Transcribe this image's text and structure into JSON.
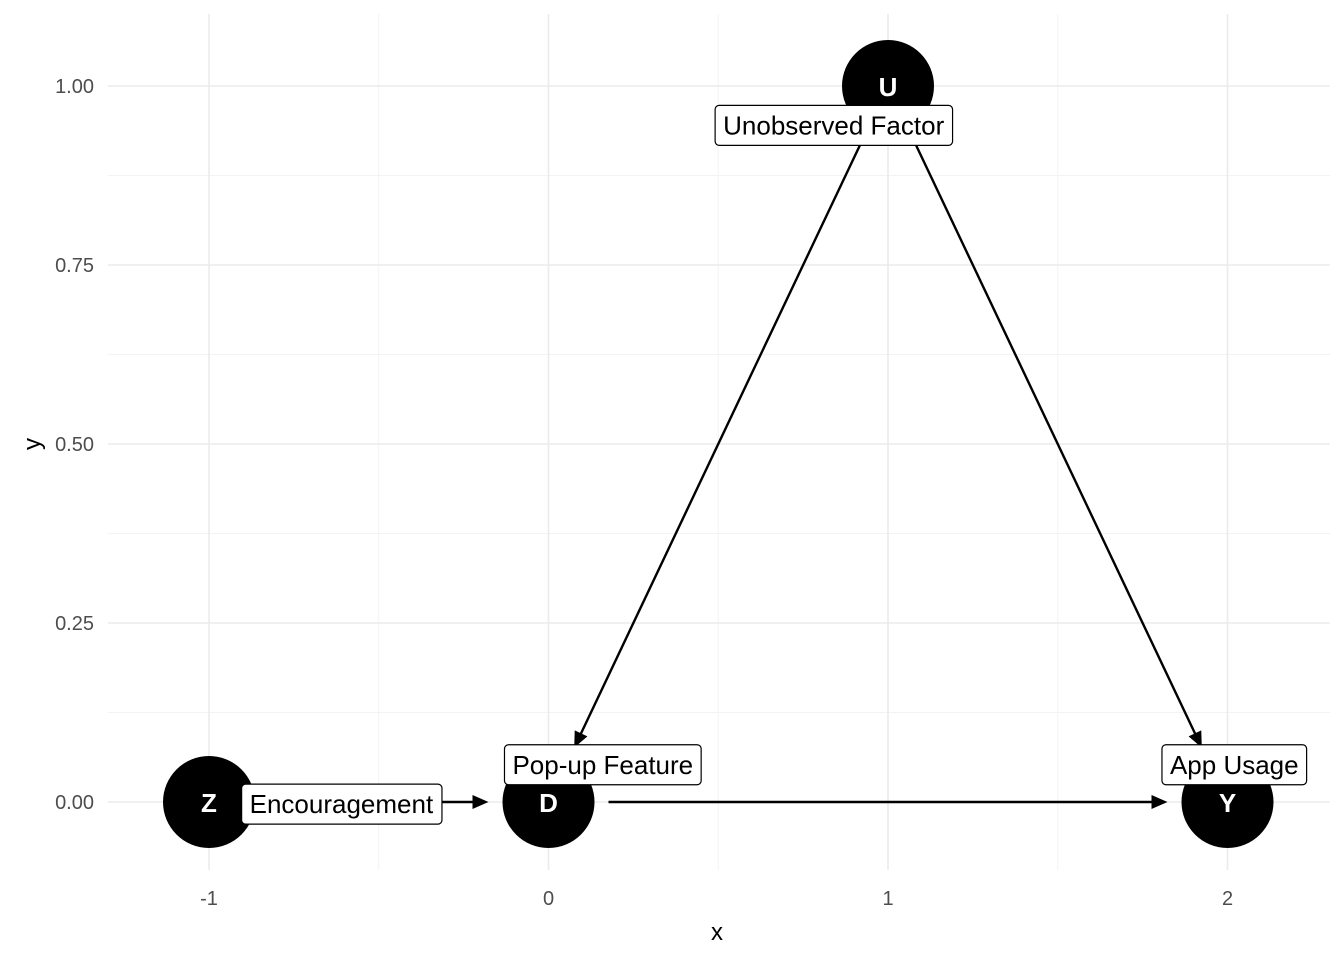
{
  "chart_data": {
    "type": "dag",
    "xlabel": "x",
    "ylabel": "y",
    "x_ticks": [
      "-1",
      "0",
      "1",
      "2"
    ],
    "y_ticks": [
      "0.00",
      "0.25",
      "0.50",
      "0.75",
      "1.00"
    ],
    "xlim": [
      -1.3,
      2.3
    ],
    "ylim": [
      -0.1,
      1.1
    ],
    "grid": true,
    "nodes": [
      {
        "id": "Z",
        "letter": "Z",
        "label": "Encouragement",
        "x": -1,
        "y": 0
      },
      {
        "id": "D",
        "letter": "D",
        "label": "Pop-up Feature",
        "x": 0,
        "y": 0
      },
      {
        "id": "U",
        "letter": "U",
        "label": "Unobserved Factor",
        "x": 1,
        "y": 1
      },
      {
        "id": "Y",
        "letter": "Y",
        "label": "App Usage",
        "x": 2,
        "y": 0
      }
    ],
    "edges": [
      {
        "from": "Z",
        "to": "D"
      },
      {
        "from": "D",
        "to": "Y"
      },
      {
        "from": "U",
        "to": "D"
      },
      {
        "from": "U",
        "to": "Y"
      }
    ]
  }
}
